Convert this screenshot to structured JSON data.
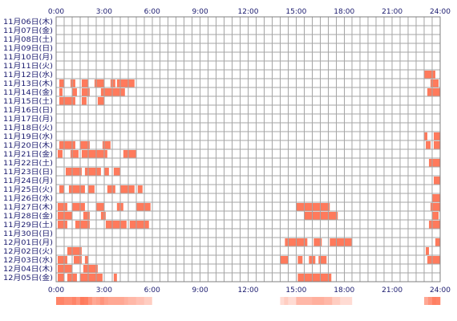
{
  "chart_data": {
    "type": "heatmap",
    "x_unit": "hour of day",
    "xlim": [
      0,
      24
    ],
    "x_ticks": [
      {
        "value": 0,
        "label": "0:00"
      },
      {
        "value": 3,
        "label": "3:00"
      },
      {
        "value": 6,
        "label": "6:00"
      },
      {
        "value": 9,
        "label": "9:00"
      },
      {
        "value": 12,
        "label": "12:00"
      },
      {
        "value": 15,
        "label": "15:00"
      },
      {
        "value": 18,
        "label": "18:00"
      },
      {
        "value": 21,
        "label": "21:00"
      },
      {
        "value": 24,
        "label": "24:00"
      }
    ],
    "rows": [
      {
        "label": "11月06日(木)",
        "intervals": []
      },
      {
        "label": "11月07日(金)",
        "intervals": []
      },
      {
        "label": "11月08日(土)",
        "intervals": []
      },
      {
        "label": "11月09日(日)",
        "intervals": []
      },
      {
        "label": "11月10日(月)",
        "intervals": []
      },
      {
        "label": "11月11日(火)",
        "intervals": []
      },
      {
        "label": "11月12日(水)",
        "intervals": [
          [
            23.0,
            23.7
          ]
        ]
      },
      {
        "label": "11月13日(木)",
        "intervals": [
          [
            0.2,
            0.5
          ],
          [
            0.9,
            1.2
          ],
          [
            1.6,
            2.0
          ],
          [
            2.4,
            3.0
          ],
          [
            3.4,
            3.7
          ],
          [
            3.8,
            4.9
          ],
          [
            23.4,
            23.9
          ]
        ]
      },
      {
        "label": "11月14日(金)",
        "intervals": [
          [
            0.2,
            0.4
          ],
          [
            1.0,
            1.3
          ],
          [
            1.6,
            2.1
          ],
          [
            2.8,
            4.3
          ],
          [
            23.2,
            24.0
          ]
        ]
      },
      {
        "label": "11月15日(土)",
        "intervals": [
          [
            0.2,
            1.2
          ],
          [
            1.6,
            1.9
          ],
          [
            2.6,
            3.0
          ]
        ]
      },
      {
        "label": "11月16日(日)",
        "intervals": []
      },
      {
        "label": "11月17日(月)",
        "intervals": []
      },
      {
        "label": "11月18日(火)",
        "intervals": []
      },
      {
        "label": "11月19日(水)",
        "intervals": [
          [
            23.0,
            23.2
          ],
          [
            23.6,
            24.0
          ]
        ]
      },
      {
        "label": "11月20日(木)",
        "intervals": [
          [
            0.2,
            1.2
          ],
          [
            1.5,
            2.1
          ],
          [
            2.9,
            3.4
          ],
          [
            23.1,
            23.4
          ],
          [
            23.6,
            24.0
          ]
        ]
      },
      {
        "label": "11月21日(金)",
        "intervals": [
          [
            0.1,
            0.4
          ],
          [
            0.9,
            1.4
          ],
          [
            1.6,
            3.2
          ],
          [
            4.2,
            5.0
          ]
        ]
      },
      {
        "label": "11月22日(土)",
        "intervals": [
          [
            23.3,
            24.0
          ]
        ]
      },
      {
        "label": "11月23日(日)",
        "intervals": [
          [
            0.6,
            1.6
          ],
          [
            1.8,
            2.8
          ],
          [
            3.0,
            3.3
          ],
          [
            3.6,
            4.0
          ]
        ]
      },
      {
        "label": "11月24日(月)",
        "intervals": [
          [
            23.6,
            24.0
          ]
        ]
      },
      {
        "label": "11月25日(火)",
        "intervals": [
          [
            0.2,
            0.5
          ],
          [
            0.8,
            1.8
          ],
          [
            2.0,
            2.4
          ],
          [
            3.2,
            3.7
          ],
          [
            4.0,
            4.9
          ],
          [
            5.1,
            5.4
          ]
        ]
      },
      {
        "label": "11月26日(水)",
        "intervals": [
          [
            23.5,
            24.0
          ]
        ]
      },
      {
        "label": "11月27日(木)",
        "intervals": [
          [
            0.1,
            0.7
          ],
          [
            1.0,
            1.8
          ],
          [
            2.5,
            3.0
          ],
          [
            3.8,
            4.2
          ],
          [
            5.0,
            5.9
          ],
          [
            15.0,
            17.1
          ],
          [
            23.4,
            24.0
          ]
        ]
      },
      {
        "label": "11月28日(金)",
        "intervals": [
          [
            0.1,
            1.0
          ],
          [
            1.7,
            2.1
          ],
          [
            2.8,
            3.1
          ],
          [
            15.5,
            17.6
          ],
          [
            23.5,
            23.9
          ]
        ]
      },
      {
        "label": "11月29日(土)",
        "intervals": [
          [
            0.1,
            0.7
          ],
          [
            1.2,
            2.1
          ],
          [
            3.1,
            4.4
          ],
          [
            4.6,
            5.8
          ],
          [
            23.3,
            24.0
          ]
        ]
      },
      {
        "label": "11月30日(日)",
        "intervals": []
      },
      {
        "label": "12月01日(月)",
        "intervals": [
          [
            14.3,
            15.7
          ],
          [
            16.1,
            16.6
          ],
          [
            17.1,
            18.5
          ],
          [
            23.7,
            24.0
          ]
        ]
      },
      {
        "label": "12月02日(火)",
        "intervals": [
          [
            0.7,
            1.6
          ],
          [
            23.1,
            23.3
          ]
        ]
      },
      {
        "label": "12月03日(水)",
        "intervals": [
          [
            0.1,
            0.7
          ],
          [
            1.1,
            1.6
          ],
          [
            1.8,
            2.0
          ],
          [
            14.0,
            14.5
          ],
          [
            15.1,
            15.4
          ],
          [
            15.8,
            16.2
          ],
          [
            16.4,
            16.9
          ],
          [
            23.2,
            24.0
          ]
        ]
      },
      {
        "label": "12月04日(木)",
        "intervals": [
          [
            0.1,
            1.0
          ],
          [
            1.7,
            2.6
          ]
        ]
      },
      {
        "label": "12月05日(金)",
        "intervals": [
          [
            0.1,
            0.5
          ],
          [
            0.7,
            1.3
          ],
          [
            1.5,
            2.9
          ],
          [
            3.6,
            3.8
          ],
          [
            15.1,
            17.2
          ]
        ]
      }
    ],
    "density_strip": {
      "cells_per_hour": 4,
      "high": "#ff7a5c",
      "low": "#ffffff"
    }
  },
  "colors": {
    "bar": "#ff7a5c",
    "grid": "#a5a5a5",
    "border": "#7f7f7f",
    "text": "#1a1a6e"
  }
}
